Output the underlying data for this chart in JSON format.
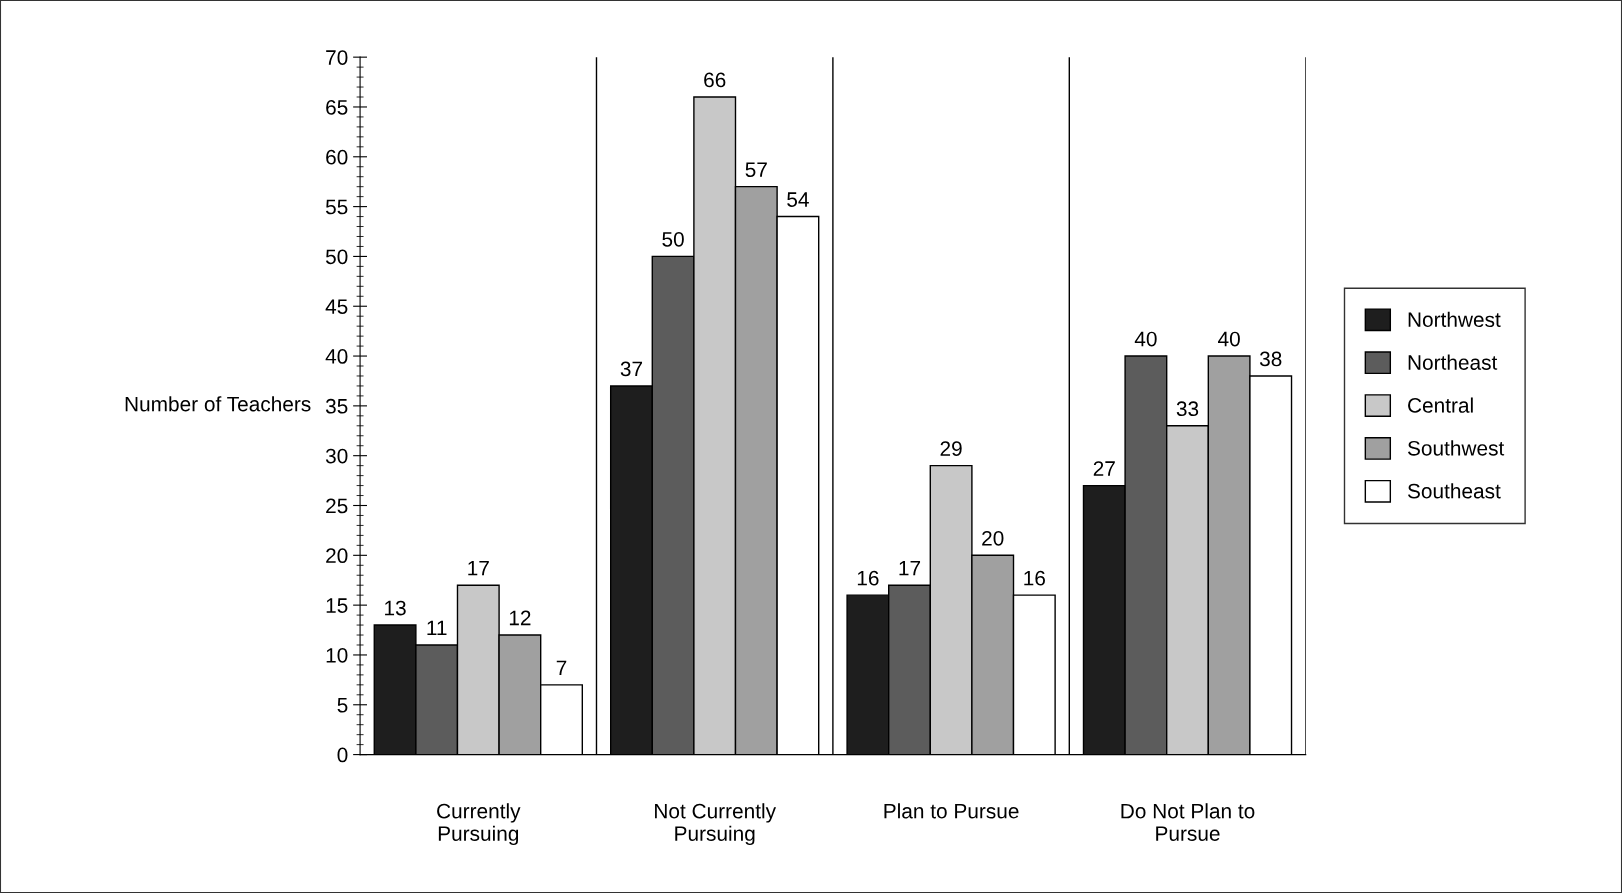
{
  "chart_data": {
    "type": "bar",
    "ylabel": "Number of Teachers",
    "categories": [
      "Currently\nPursuing",
      "Not Currently\nPursuing",
      "Plan to Pursue",
      "Do Not Plan to\nPursue"
    ],
    "series": [
      {
        "name": "Northwest",
        "color": "#1e1e1e",
        "values": [
          13,
          37,
          16,
          27
        ]
      },
      {
        "name": "Northeast",
        "color": "#5c5c5c",
        "values": [
          11,
          50,
          17,
          40
        ]
      },
      {
        "name": "Central",
        "color": "#c8c8c8",
        "values": [
          17,
          66,
          29,
          33
        ]
      },
      {
        "name": "Southwest",
        "color": "#a0a0a0",
        "values": [
          12,
          57,
          20,
          40
        ]
      },
      {
        "name": "Southeast",
        "color": "#ffffff",
        "values": [
          7,
          54,
          16,
          38
        ]
      }
    ],
    "ylim": [
      0,
      70
    ],
    "yticks": [
      0,
      5,
      10,
      15,
      20,
      25,
      30,
      35,
      40,
      45,
      50,
      55,
      60,
      65,
      70
    ],
    "data_labels": true,
    "grid": "x",
    "legend": "right"
  }
}
